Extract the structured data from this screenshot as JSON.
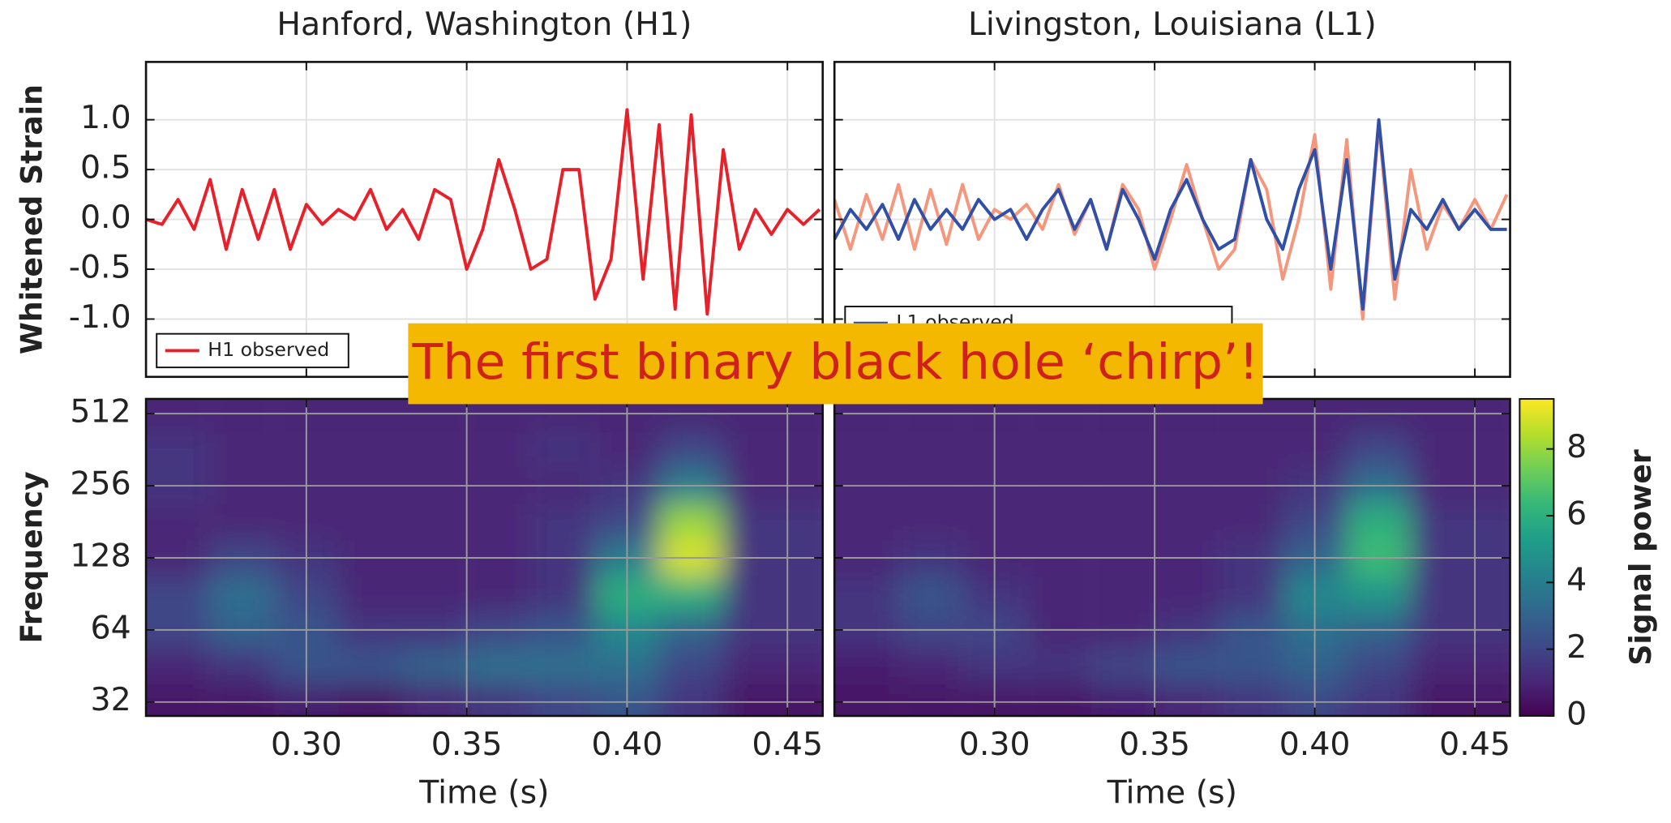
{
  "annotation": {
    "text": "The first binary black hole ‘chirp’!",
    "background": "#f5b800",
    "color": "#d0201a"
  },
  "chart_data": [
    {
      "type": "line",
      "title": "Hanford, Washington (H1)",
      "ylabel": "Whitened Strain",
      "x": [
        0.25,
        0.255,
        0.26,
        0.265,
        0.27,
        0.275,
        0.28,
        0.285,
        0.29,
        0.295,
        0.3,
        0.305,
        0.31,
        0.315,
        0.32,
        0.325,
        0.33,
        0.335,
        0.34,
        0.345,
        0.35,
        0.355,
        0.36,
        0.365,
        0.37,
        0.375,
        0.38,
        0.385,
        0.39,
        0.395,
        0.4,
        0.405,
        0.41,
        0.415,
        0.42,
        0.425,
        0.43,
        0.435,
        0.44,
        0.445,
        0.45,
        0.455,
        0.46
      ],
      "series": [
        {
          "name": "H1 observed",
          "color": "#e8202a",
          "values": [
            0.0,
            -0.05,
            0.2,
            -0.1,
            0.4,
            -0.3,
            0.3,
            -0.2,
            0.3,
            -0.3,
            0.15,
            -0.05,
            0.1,
            0.0,
            0.3,
            -0.1,
            0.1,
            -0.2,
            0.3,
            0.2,
            -0.5,
            -0.1,
            0.6,
            0.1,
            -0.5,
            -0.4,
            0.5,
            0.5,
            -0.8,
            -0.4,
            1.1,
            -0.6,
            0.95,
            -0.9,
            1.05,
            -0.95,
            0.7,
            -0.3,
            0.1,
            -0.15,
            0.1,
            -0.05,
            0.1
          ]
        }
      ],
      "xlim": [
        0.25,
        0.461
      ],
      "ylim": [
        -1.58,
        1.58
      ],
      "xticks": [
        0.3,
        0.35,
        0.4,
        0.45
      ],
      "yticks": [
        {
          "value": -1,
          "label": "-1.0"
        },
        {
          "value": -0.5,
          "label": "-0.5"
        },
        {
          "value": 0,
          "label": "0.0"
        },
        {
          "value": 0.5,
          "label": "0.5"
        },
        {
          "value": 1,
          "label": "1.0"
        }
      ],
      "grid": true,
      "legend": "lower left"
    },
    {
      "type": "line",
      "title": "Livingston, Louisiana (L1)",
      "x": [
        0.25,
        0.255,
        0.26,
        0.265,
        0.27,
        0.275,
        0.28,
        0.285,
        0.29,
        0.295,
        0.3,
        0.305,
        0.31,
        0.315,
        0.32,
        0.325,
        0.33,
        0.335,
        0.34,
        0.345,
        0.35,
        0.355,
        0.36,
        0.365,
        0.37,
        0.375,
        0.38,
        0.385,
        0.39,
        0.395,
        0.4,
        0.405,
        0.41,
        0.415,
        0.42,
        0.425,
        0.43,
        0.435,
        0.44,
        0.445,
        0.45,
        0.455,
        0.46
      ],
      "series": [
        {
          "color": "#f4977c",
          "values": [
            0.2,
            -0.3,
            0.25,
            -0.2,
            0.35,
            -0.3,
            0.3,
            -0.25,
            0.35,
            -0.2,
            0.1,
            0.0,
            0.15,
            -0.1,
            0.35,
            -0.15,
            0.2,
            -0.3,
            0.35,
            0.1,
            -0.5,
            0.0,
            0.55,
            0.0,
            -0.5,
            -0.3,
            0.6,
            0.3,
            -0.6,
            0.0,
            0.85,
            -0.7,
            0.8,
            -1.0,
            0.95,
            -0.8,
            0.5,
            -0.3,
            0.15,
            -0.1,
            0.2,
            -0.1,
            0.25
          ]
        },
        {
          "name": "L1 observed",
          "color": "#3050a8",
          "values": [
            -0.2,
            0.1,
            -0.1,
            0.15,
            -0.2,
            0.2,
            -0.1,
            0.1,
            -0.1,
            0.2,
            0.0,
            0.1,
            -0.2,
            0.1,
            0.3,
            -0.1,
            0.2,
            -0.3,
            0.3,
            0.0,
            -0.4,
            0.1,
            0.4,
            0.0,
            -0.3,
            -0.2,
            0.6,
            0.0,
            -0.3,
            0.3,
            0.7,
            -0.5,
            0.6,
            -0.9,
            1.0,
            -0.6,
            0.1,
            -0.1,
            0.2,
            -0.1,
            0.1,
            -0.1,
            -0.1
          ]
        }
      ],
      "xlim": [
        0.25,
        0.461
      ],
      "ylim": [
        -1.58,
        1.58
      ],
      "xticks": [
        0.3,
        0.35,
        0.4,
        0.45
      ],
      "yticks": [
        -1,
        -0.5,
        0,
        0.5,
        1
      ],
      "grid": true,
      "legend": "lower left"
    },
    {
      "type": "heatmap",
      "ylabel": "Frequency",
      "xlabel": "Time (s)",
      "ylog": true,
      "x": [
        0.26,
        0.28,
        0.3,
        0.32,
        0.34,
        0.36,
        0.38,
        0.4,
        0.42,
        0.44
      ],
      "y": [
        32,
        45,
        64,
        90,
        128,
        181,
        256,
        362,
        512
      ],
      "z": [
        [
          0.5,
          0.5,
          0.8,
          0.5,
          1,
          1.5,
          2,
          2.5,
          1.5,
          0.5
        ],
        [
          1,
          1.5,
          2.5,
          2.5,
          3,
          3.5,
          3.5,
          3.5,
          2,
          1
        ],
        [
          2,
          3,
          2.5,
          1.5,
          1.5,
          2,
          2.5,
          4.5,
          3,
          1.5
        ],
        [
          2,
          3.5,
          2,
          1,
          1,
          1,
          1.5,
          6,
          6,
          1.5
        ],
        [
          1,
          2,
          1.5,
          1,
          1,
          1,
          1.5,
          4,
          9,
          1.5
        ],
        [
          1,
          1,
          1,
          1,
          1,
          1,
          1.5,
          2,
          8,
          1.5
        ],
        [
          1.5,
          1,
          1,
          1,
          1,
          1,
          1,
          1.5,
          4,
          1
        ],
        [
          1.5,
          1,
          1,
          1,
          1,
          1,
          1.5,
          1,
          2,
          1
        ],
        [
          1,
          1,
          1,
          1,
          1,
          1,
          1,
          1,
          1,
          1
        ]
      ],
      "xlim": [
        0.25,
        0.461
      ],
      "ylim": [
        28,
        590
      ],
      "vlim": [
        0,
        9.5
      ],
      "xticks": [
        {
          "value": 0.3,
          "label": "0.30"
        },
        {
          "value": 0.35,
          "label": "0.35"
        },
        {
          "value": 0.4,
          "label": "0.40"
        },
        {
          "value": 0.45,
          "label": "0.45"
        }
      ],
      "yticks": [
        32,
        64,
        128,
        256,
        512
      ],
      "grid": true
    },
    {
      "type": "heatmap",
      "xlabel": "Time (s)",
      "ylog": true,
      "x": [
        0.26,
        0.28,
        0.3,
        0.32,
        0.34,
        0.36,
        0.38,
        0.4,
        0.42,
        0.44
      ],
      "y": [
        32,
        45,
        64,
        90,
        128,
        181,
        256,
        362,
        512
      ],
      "z": [
        [
          0.5,
          0.5,
          0.5,
          0.5,
          0.8,
          1,
          1.5,
          2,
          1.5,
          0.5
        ],
        [
          0.8,
          1,
          1.5,
          1.5,
          2,
          2.5,
          2.5,
          3,
          2,
          1
        ],
        [
          1.5,
          2,
          2,
          1,
          1,
          1.5,
          2.5,
          3.5,
          3,
          1.5
        ],
        [
          1.5,
          2.5,
          1.5,
          1,
          1,
          1,
          1.5,
          4.5,
          5,
          1.5
        ],
        [
          1,
          1.5,
          1,
          1,
          1,
          1,
          1.5,
          3,
          6.5,
          1.5
        ],
        [
          1,
          1,
          1,
          1,
          1,
          1,
          1,
          2,
          6,
          1.5
        ],
        [
          1,
          1,
          1,
          1,
          1,
          1,
          1,
          1.5,
          3.5,
          1
        ],
        [
          1,
          1,
          1,
          1,
          1,
          1,
          1,
          1,
          2,
          1
        ],
        [
          1,
          1,
          1,
          1,
          1,
          1,
          1,
          1,
          1,
          1
        ]
      ],
      "xlim": [
        0.25,
        0.461
      ],
      "ylim": [
        28,
        590
      ],
      "vlim": [
        0,
        9.5
      ],
      "xticks": [
        {
          "value": 0.3,
          "label": "0.30"
        },
        {
          "value": 0.35,
          "label": "0.35"
        },
        {
          "value": 0.4,
          "label": "0.40"
        },
        {
          "value": 0.45,
          "label": "0.45"
        }
      ],
      "yticks": [
        32,
        64,
        128,
        256,
        512
      ],
      "grid": true,
      "colorbar_label": "Signal power",
      "cticks": [
        0,
        2,
        4,
        6,
        8
      ]
    }
  ]
}
